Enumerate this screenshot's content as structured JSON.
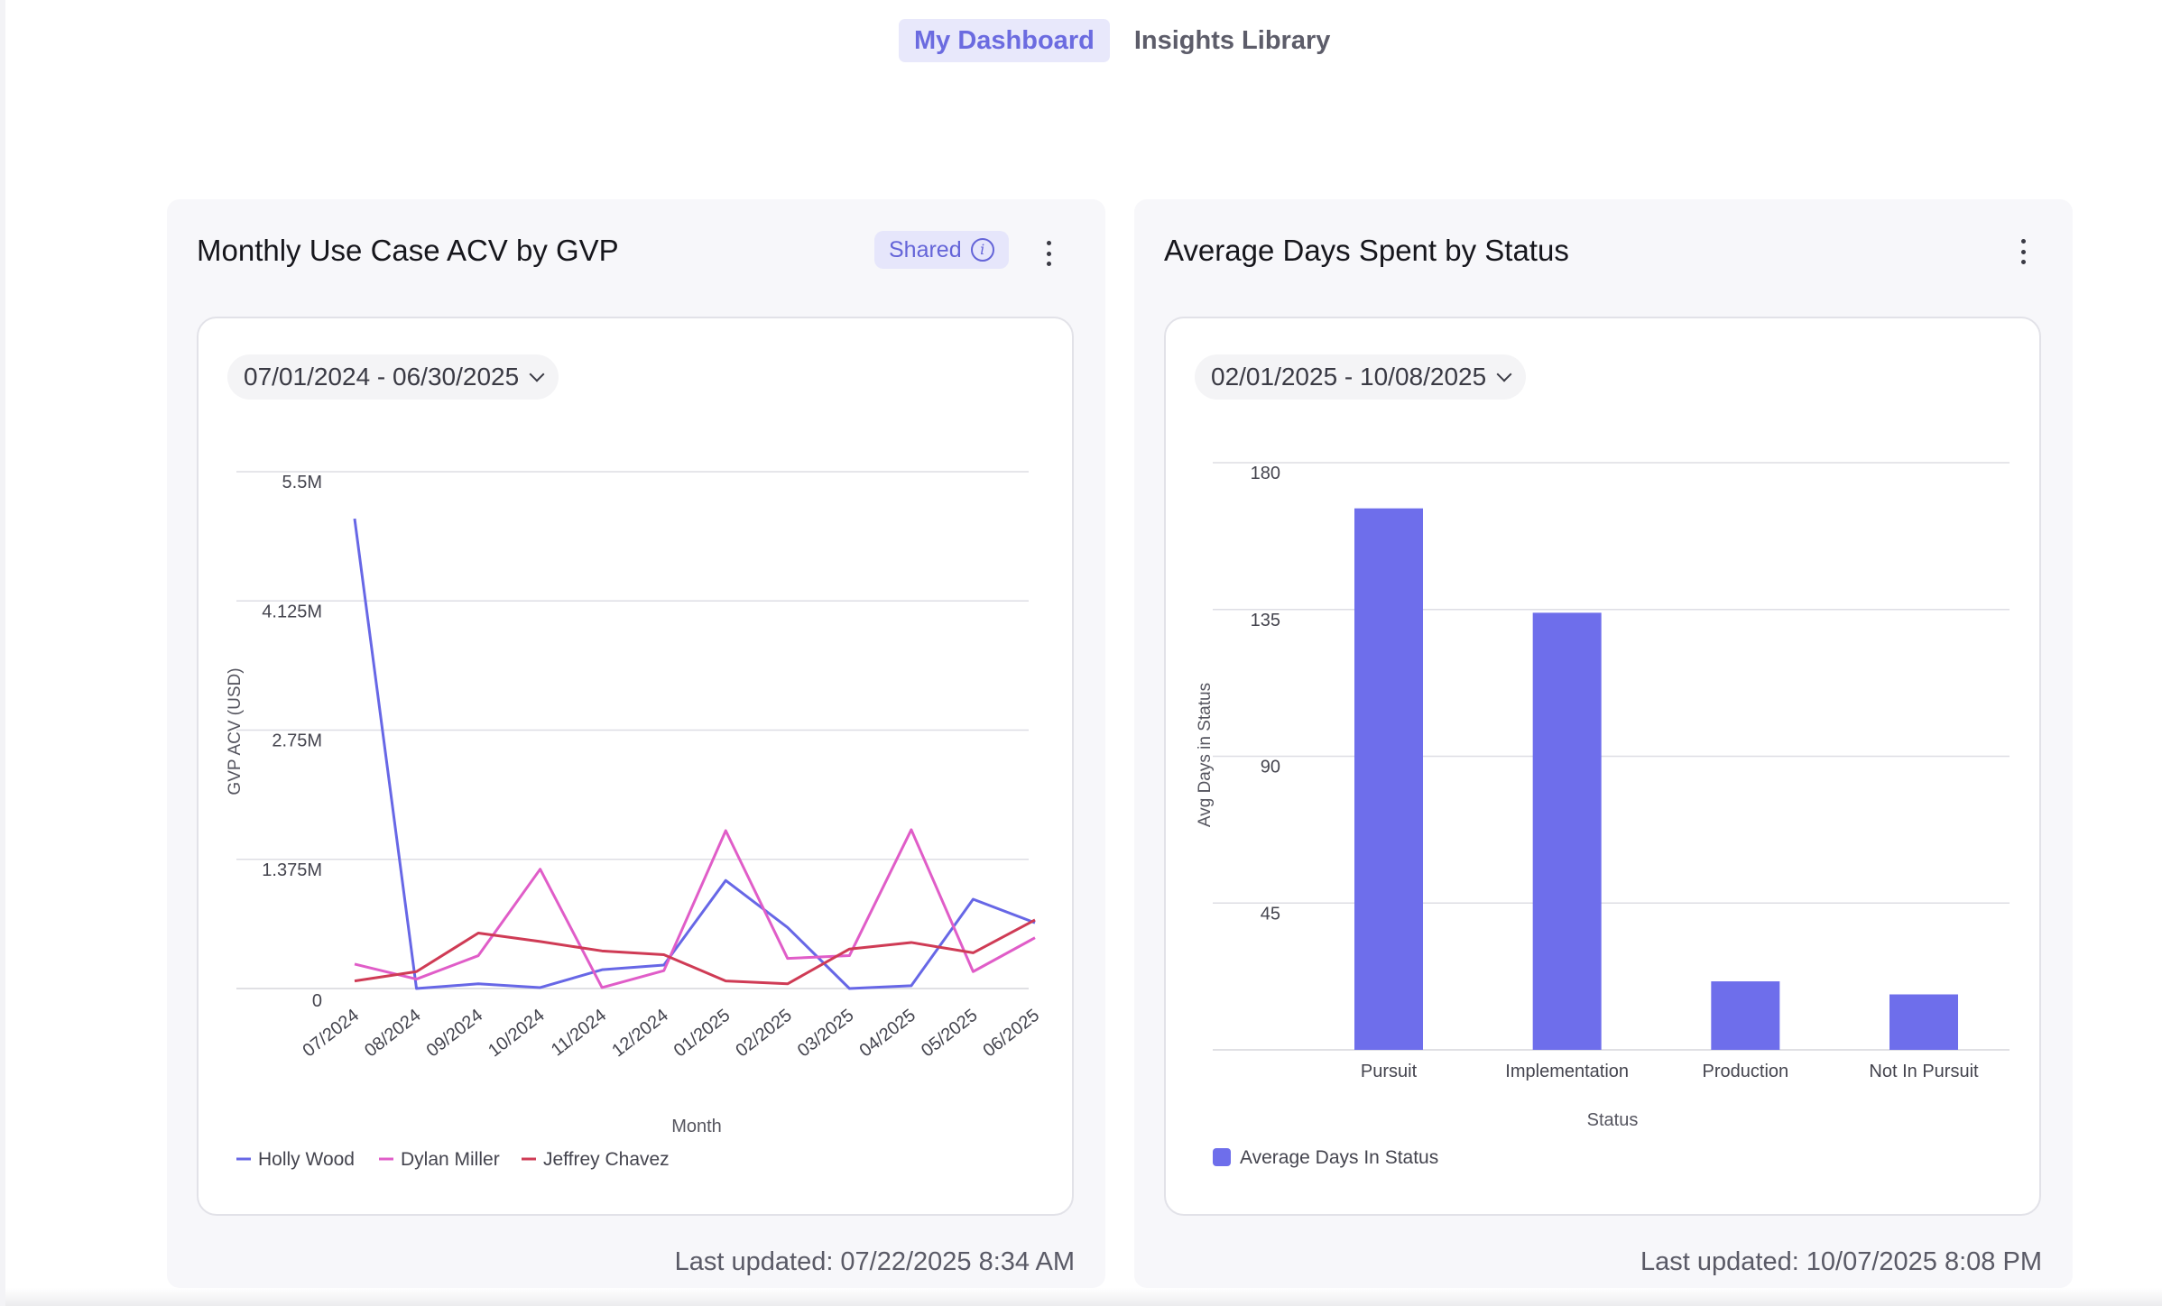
{
  "tabs": [
    {
      "label": "My Dashboard",
      "active": true
    },
    {
      "label": "Insights Library",
      "active": false
    }
  ],
  "cards": [
    {
      "title": "Monthly Use Case ACV by GVP",
      "badge": "Shared",
      "date_range": "07/01/2024 - 06/30/2025",
      "last_updated_label": "Last updated:",
      "last_updated_value": "07/22/2025 8:34 AM"
    },
    {
      "title": "Average Days Spent by Status",
      "date_range": "02/01/2025 - 10/08/2025",
      "last_updated_label": "Last updated:",
      "last_updated_value": "10/07/2025 8:08 PM"
    }
  ],
  "colors": {
    "accent": "#6b6be0",
    "holly": "#6767e6",
    "dylan": "#e05dc8",
    "jeffrey": "#cf3b55",
    "bar": "#6e6eeb"
  },
  "chart_data": [
    {
      "type": "line",
      "title": "",
      "xlabel": "Month",
      "ylabel": "GVP ACV (USD)",
      "categories": [
        "07/2024",
        "08/2024",
        "09/2024",
        "10/2024",
        "11/2024",
        "12/2024",
        "01/2025",
        "02/2025",
        "03/2025",
        "04/2025",
        "05/2025",
        "06/2025"
      ],
      "ytick_labels": [
        "0",
        "1.375M",
        "2.75M",
        "4.125M",
        "5.5M"
      ],
      "ylim": [
        0,
        5500000
      ],
      "grid": true,
      "legend": "bottom-left",
      "series": [
        {
          "name": "Holly Wood",
          "values": [
            5000000,
            0,
            50000,
            10000,
            200000,
            250000,
            1150000,
            650000,
            0,
            30000,
            950000,
            700000
          ]
        },
        {
          "name": "Dylan Miller",
          "values": [
            260000,
            100000,
            350000,
            1270000,
            10000,
            190000,
            1680000,
            320000,
            350000,
            1690000,
            180000,
            540000
          ]
        },
        {
          "name": "Jeffrey Chavez",
          "values": [
            80000,
            180000,
            590000,
            500000,
            400000,
            360000,
            80000,
            50000,
            420000,
            490000,
            380000,
            730000
          ]
        }
      ]
    },
    {
      "type": "bar",
      "title": "",
      "xlabel": "Status",
      "ylabel": "Avg Days in Status",
      "categories": [
        "Pursuit",
        "Implementation",
        "Production",
        "Not In Pursuit"
      ],
      "ytick_labels": [
        "45",
        "90",
        "135",
        "180"
      ],
      "ylim": [
        0,
        180
      ],
      "grid": true,
      "legend": "bottom-left",
      "series": [
        {
          "name": "Average Days In Status",
          "values": [
            166,
            134,
            21,
            17
          ]
        }
      ]
    }
  ]
}
